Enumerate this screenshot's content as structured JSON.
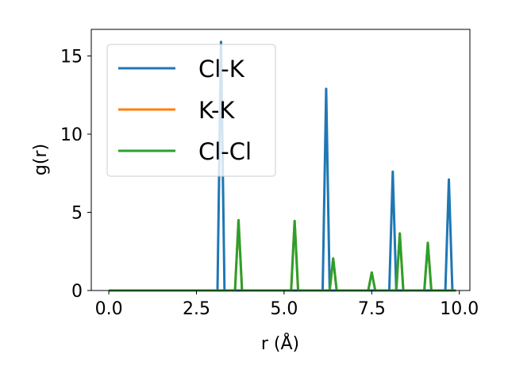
{
  "chart_data": {
    "type": "line",
    "xlabel": "r (Å)",
    "ylabel": "g(r)",
    "xlim": [
      -0.5,
      10.3
    ],
    "ylim": [
      0,
      16.7
    ],
    "xticks": [
      0.0,
      2.5,
      5.0,
      7.5,
      10.0
    ],
    "xtick_labels": [
      "0.0",
      "2.5",
      "5.0",
      "7.5",
      "10.0"
    ],
    "yticks": [
      0,
      5,
      10,
      15
    ],
    "ytick_labels": [
      "0",
      "5",
      "10",
      "15"
    ],
    "grid": false,
    "legend_position": "upper-left",
    "series": [
      {
        "name": "Cl-K",
        "color": "#1f77b4",
        "points": [
          [
            0.0,
            0.0
          ],
          [
            3.1,
            0.0
          ],
          [
            3.2,
            15.9
          ],
          [
            3.3,
            0.0
          ],
          [
            6.1,
            0.0
          ],
          [
            6.2,
            12.9
          ],
          [
            6.3,
            0.0
          ],
          [
            8.0,
            0.0
          ],
          [
            8.1,
            7.6
          ],
          [
            8.2,
            0.0
          ],
          [
            9.6,
            0.0
          ],
          [
            9.7,
            7.1
          ],
          [
            9.8,
            0.0
          ],
          [
            9.9,
            0.0
          ]
        ]
      },
      {
        "name": "K-K",
        "color": "#ff7f0e",
        "points": [
          [
            0.0,
            0.0
          ],
          [
            3.6,
            0.0
          ],
          [
            3.7,
            4.5
          ],
          [
            3.8,
            0.0
          ],
          [
            5.2,
            0.0
          ],
          [
            5.3,
            4.45
          ],
          [
            5.4,
            0.0
          ],
          [
            6.3,
            0.0
          ],
          [
            6.4,
            2.05
          ],
          [
            6.5,
            0.0
          ],
          [
            7.4,
            0.0
          ],
          [
            7.5,
            1.15
          ],
          [
            7.6,
            0.0
          ],
          [
            8.2,
            0.0
          ],
          [
            8.3,
            3.65
          ],
          [
            8.4,
            0.0
          ],
          [
            9.0,
            0.0
          ],
          [
            9.1,
            3.05
          ],
          [
            9.2,
            0.0
          ],
          [
            9.9,
            0.0
          ]
        ]
      },
      {
        "name": "Cl-Cl",
        "color": "#2ca02c",
        "points": [
          [
            0.0,
            0.0
          ],
          [
            3.6,
            0.0
          ],
          [
            3.7,
            4.5
          ],
          [
            3.8,
            0.0
          ],
          [
            5.2,
            0.0
          ],
          [
            5.3,
            4.45
          ],
          [
            5.4,
            0.0
          ],
          [
            6.3,
            0.0
          ],
          [
            6.4,
            2.05
          ],
          [
            6.5,
            0.0
          ],
          [
            7.4,
            0.0
          ],
          [
            7.5,
            1.15
          ],
          [
            7.6,
            0.0
          ],
          [
            8.2,
            0.0
          ],
          [
            8.3,
            3.65
          ],
          [
            8.4,
            0.0
          ],
          [
            9.0,
            0.0
          ],
          [
            9.1,
            3.05
          ],
          [
            9.2,
            0.0
          ],
          [
            9.9,
            0.0
          ]
        ]
      }
    ]
  }
}
